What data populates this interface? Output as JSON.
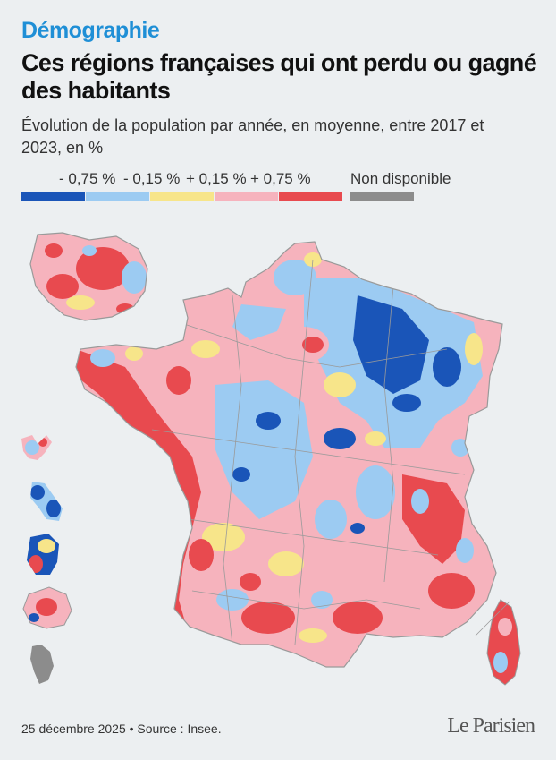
{
  "header": {
    "kicker": "Démographie",
    "title": "Ces régions françaises qui ont perdu ou gagné des habitants",
    "subtitle": "Évolution de la population par année, en moyenne, entre 2017 et 2023, en %"
  },
  "legend": {
    "labels": [
      "- 0,75 %",
      "- 0,15 %",
      "+ 0,15 %",
      "+ 0,75 %"
    ],
    "na_label": "Non disponible",
    "colors": [
      "#1a55b8",
      "#9ccbf2",
      "#f7e58a",
      "#f6b3bd",
      "#e84a4f",
      "#8c8c8c"
    ]
  },
  "map": {
    "regions": [
      "Île-de-France",
      "France métropolitaine",
      "Guadeloupe",
      "Martinique",
      "Guyane",
      "La Réunion",
      "Mayotte",
      "Corse"
    ],
    "colors": {
      "strong_loss": "#1a55b8",
      "loss": "#9ccbf2",
      "stable": "#f7e58a",
      "gain": "#f6b3bd",
      "strong_gain": "#e84a4f",
      "not_available": "#8c8c8c",
      "border": "#9a9a9a"
    }
  },
  "footer": {
    "text": "25 décembre 2025 • Source : Insee.",
    "logo": "Le Parisien"
  }
}
